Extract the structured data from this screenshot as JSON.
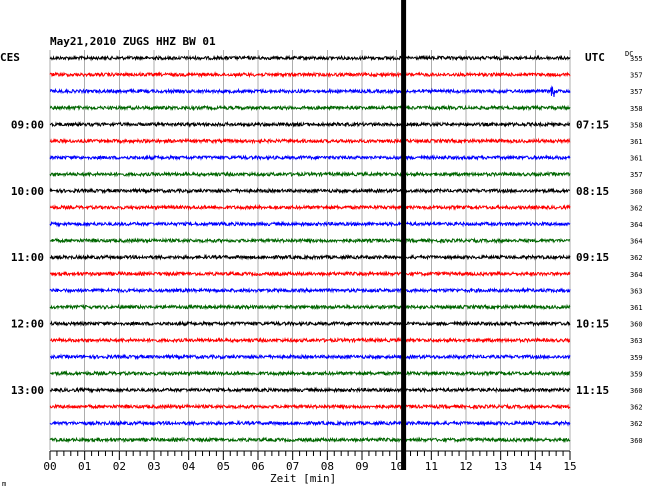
{
  "header": {
    "title": "May21,2010  ZUGS HHZ BW 01",
    "left_zone": "CES",
    "right_zone": "UTC",
    "dc_label": "DC"
  },
  "chart_data": {
    "type": "line",
    "xlabel": "Zeit [min]",
    "xlim": [
      0,
      15
    ],
    "x_ticks": [
      "00",
      "01",
      "02",
      "03",
      "04",
      "05",
      "06",
      "07",
      "08",
      "09",
      "10",
      "11",
      "12",
      "13",
      "14",
      "15"
    ],
    "trace_count": 24,
    "trace_colors": [
      "#000000",
      "#ff0000",
      "#0000ff",
      "#006600"
    ],
    "left_time_labels": [
      {
        "trace": 4,
        "text": "09:00"
      },
      {
        "trace": 8,
        "text": "10:00"
      },
      {
        "trace": 12,
        "text": "11:00"
      },
      {
        "trace": 16,
        "text": "12:00"
      },
      {
        "trace": 20,
        "text": "13:00"
      }
    ],
    "right_time_labels": [
      {
        "trace": 4,
        "text": "07:15"
      },
      {
        "trace": 8,
        "text": "08:15"
      },
      {
        "trace": 12,
        "text": "09:15"
      },
      {
        "trace": 16,
        "text": "10:15"
      },
      {
        "trace": 20,
        "text": "11:15"
      }
    ],
    "dc_values": [
      355,
      357,
      357,
      358,
      358,
      361,
      361,
      357,
      360,
      362,
      364,
      364,
      362,
      364,
      363,
      361,
      360,
      363,
      359,
      359,
      360,
      362,
      362,
      360
    ],
    "marker_minute": 10.2,
    "event": {
      "trace": 2,
      "minute": 14.5
    }
  },
  "footer": {
    "corner_mark": "m"
  }
}
